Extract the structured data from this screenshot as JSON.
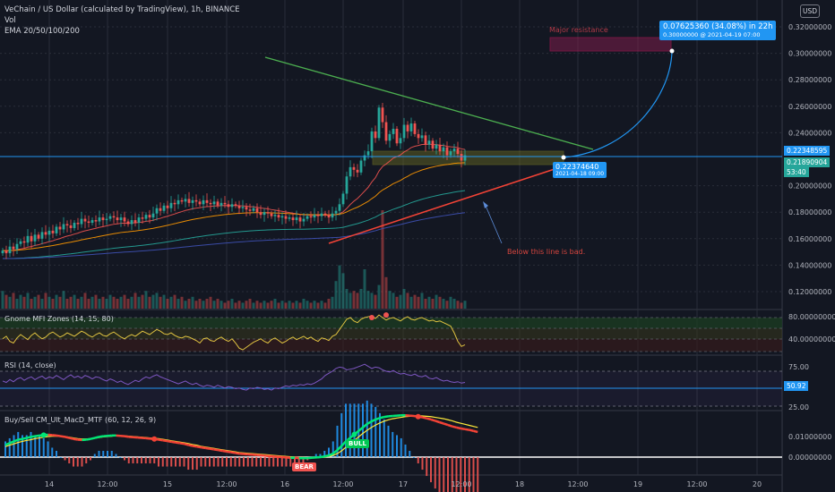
{
  "header": {
    "symbol_title": "VeChain / US Dollar (calculated by TradingView), 1h, BINANCE",
    "vol_label": "Vol",
    "ema_label": "EMA 20/50/100/200"
  },
  "currency_button": "USD",
  "price_axis": {
    "ticks": [
      "0.32000000",
      "0.30000000",
      "0.28000000",
      "0.26000000",
      "0.24000000",
      "0.20000000",
      "0.18000000",
      "0.16000000",
      "0.14000000",
      "0.12000000"
    ],
    "current_price": "0.22348595",
    "ema_price": "0.21890904",
    "countdown": "53:40",
    "accent": "#2196f3",
    "ema_color": "#26a69a"
  },
  "panes": {
    "mfi": {
      "label": "Gnome MFI Zones (14, 15, 80)",
      "ticks": [
        "80.00000000",
        "40.00000000"
      ]
    },
    "rsi": {
      "label": "RSI (14, close)",
      "ticks": [
        "75.00",
        "25.00"
      ],
      "current": "50.92"
    },
    "macd": {
      "label": "Buy/Sell CM_Ult_MacD_MTF (60, 12, 26, 9)",
      "ticks": [
        "0.01000000",
        "0.00000000"
      ]
    }
  },
  "time_axis": [
    "14",
    "12:00",
    "15",
    "12:00",
    "16",
    "12:00",
    "17",
    "12:00",
    "18",
    "12:00",
    "19",
    "12:00",
    "20"
  ],
  "annotations": {
    "major_resistance": "Major resistance",
    "below_line": "Below this line is bad.",
    "projection_main": "0.07625360 (34.08%) in 22h",
    "projection_sub": "0.30000000 @ 2021-04-19  07:00",
    "entry_price": "0.22374640",
    "entry_date": "2021-04-18 09:00",
    "bull": "BULL",
    "bear": "BEAR"
  },
  "chart_data": {
    "type": "candlestick",
    "x_labels": [
      "14",
      "12:00",
      "15",
      "12:00",
      "16",
      "12:00",
      "17",
      "12:00",
      "18",
      "12:00",
      "19",
      "12:00",
      "20"
    ],
    "ylim": [
      0.11,
      0.33
    ],
    "close": [
      0.151,
      0.149,
      0.154,
      0.152,
      0.156,
      0.158,
      0.157,
      0.162,
      0.158,
      0.163,
      0.16,
      0.165,
      0.163,
      0.166,
      0.164,
      0.169,
      0.167,
      0.171,
      0.17,
      0.168,
      0.172,
      0.171,
      0.175,
      0.173,
      0.172,
      0.174,
      0.173,
      0.176,
      0.174,
      0.175,
      0.177,
      0.176,
      0.174,
      0.176,
      0.173,
      0.171,
      0.174,
      0.172,
      0.176,
      0.175,
      0.178,
      0.176,
      0.179,
      0.183,
      0.181,
      0.185,
      0.183,
      0.187,
      0.186,
      0.189,
      0.188,
      0.19,
      0.187,
      0.189,
      0.188,
      0.186,
      0.189,
      0.187,
      0.186,
      0.188,
      0.185,
      0.187,
      0.186,
      0.184,
      0.186,
      0.185,
      0.183,
      0.184,
      0.182,
      0.181,
      0.183,
      0.18,
      0.178,
      0.18,
      0.179,
      0.177,
      0.178,
      0.176,
      0.177,
      0.175,
      0.176,
      0.174,
      0.176,
      0.173,
      0.175,
      0.177,
      0.176,
      0.178,
      0.177,
      0.179,
      0.178,
      0.176,
      0.179,
      0.181,
      0.186,
      0.194,
      0.207,
      0.214,
      0.212,
      0.21,
      0.219,
      0.223,
      0.226,
      0.241,
      0.236,
      0.259,
      0.248,
      0.234,
      0.239,
      0.243,
      0.232,
      0.236,
      0.246,
      0.241,
      0.247,
      0.239,
      0.236,
      0.238,
      0.231,
      0.234,
      0.228,
      0.231,
      0.226,
      0.229,
      0.223,
      0.226,
      0.228,
      0.224,
      0.219,
      0.223
    ],
    "volume": [
      9,
      7,
      6,
      8,
      5,
      7,
      6,
      8,
      5,
      6,
      7,
      5,
      8,
      6,
      5,
      7,
      6,
      9,
      5,
      6,
      7,
      5,
      6,
      8,
      5,
      6,
      7,
      5,
      6,
      5,
      7,
      6,
      5,
      6,
      7,
      5,
      6,
      8,
      6,
      7,
      9,
      6,
      7,
      8,
      6,
      7,
      5,
      6,
      7,
      5,
      6,
      4,
      5,
      6,
      4,
      5,
      4,
      5,
      6,
      4,
      5,
      4,
      3,
      4,
      5,
      3,
      4,
      3,
      4,
      5,
      3,
      4,
      3,
      4,
      3,
      4,
      5,
      3,
      4,
      3,
      4,
      3,
      4,
      3,
      5,
      4,
      3,
      4,
      3,
      4,
      3,
      5,
      6,
      14,
      22,
      18,
      10,
      8,
      9,
      8,
      10,
      20,
      9,
      8,
      7,
      12,
      50,
      16,
      9,
      8,
      6,
      7,
      10,
      8,
      6,
      7,
      6,
      8,
      5,
      6,
      5,
      7,
      6,
      5,
      4,
      6,
      5,
      4,
      3,
      4
    ],
    "mfi": [
      55,
      58,
      52,
      50,
      56,
      60,
      57,
      54,
      59,
      62,
      58,
      55,
      57,
      61,
      63,
      60,
      57,
      59,
      62,
      60,
      58,
      61,
      64,
      62,
      59,
      57,
      60,
      62,
      59,
      58,
      61,
      63,
      60,
      57,
      55,
      58,
      60,
      58,
      61,
      64,
      62,
      60,
      63,
      66,
      64,
      61,
      60,
      62,
      59,
      57,
      56,
      58,
      57,
      55,
      53,
      50,
      55,
      56,
      53,
      52,
      55,
      57,
      54,
      52,
      55,
      50,
      44,
      42,
      45,
      48,
      51,
      53,
      55,
      52,
      50,
      54,
      56,
      53,
      50,
      52,
      55,
      57,
      54,
      56,
      58,
      55,
      57,
      54,
      52,
      56,
      55,
      53,
      58,
      60,
      66,
      72,
      78,
      80,
      76,
      74,
      78,
      80,
      81,
      82,
      79,
      83,
      80,
      77,
      79,
      80,
      78,
      76,
      79,
      81,
      78,
      77,
      79,
      80,
      78,
      76,
      77,
      75,
      76,
      74,
      72,
      70,
      62,
      52,
      46,
      48
    ],
    "rsi": [
      52,
      50,
      54,
      51,
      55,
      57,
      53,
      56,
      58,
      54,
      57,
      59,
      55,
      58,
      56,
      60,
      57,
      54,
      58,
      61,
      57,
      59,
      56,
      60,
      58,
      55,
      58,
      57,
      54,
      52,
      55,
      53,
      50,
      52,
      49,
      47,
      50,
      53,
      51,
      55,
      58,
      56,
      59,
      61,
      58,
      56,
      54,
      52,
      50,
      48,
      50,
      52,
      49,
      47,
      49,
      46,
      44,
      46,
      45,
      43,
      46,
      44,
      42,
      44,
      43,
      41,
      42,
      40,
      39,
      42,
      41,
      43,
      42,
      40,
      41,
      39,
      42,
      41,
      43,
      45,
      44,
      46,
      45,
      47,
      46,
      48,
      47,
      49,
      52,
      55,
      60,
      63,
      66,
      70,
      72,
      71,
      68,
      69,
      70,
      72,
      74,
      76,
      73,
      70,
      72,
      71,
      68,
      66,
      65,
      67,
      64,
      62,
      63,
      61,
      60,
      62,
      59,
      58,
      60,
      56,
      55,
      57,
      54,
      52,
      53,
      51,
      50,
      51,
      49,
      50
    ],
    "macd_fast": [
      0.0035,
      0.004,
      0.0045,
      0.005,
      0.0052,
      0.0055,
      0.0058,
      0.006,
      0.0062,
      0.0063,
      0.0064,
      0.0063,
      0.0062,
      0.006,
      0.0058,
      0.0055,
      0.0052,
      0.005,
      0.0049,
      0.005,
      0.0052,
      0.0055,
      0.0058,
      0.006,
      0.0061,
      0.0062,
      0.0062,
      0.0061,
      0.006,
      0.0058,
      0.0057,
      0.0056,
      0.0055,
      0.0054,
      0.0053,
      0.0052,
      0.005,
      0.0048,
      0.0046,
      0.0044,
      0.0042,
      0.004,
      0.0038,
      0.0035,
      0.0032,
      0.003,
      0.0028,
      0.0026,
      0.0024,
      0.0022,
      0.002,
      0.0018,
      0.0016,
      0.0014,
      0.0012,
      0.001,
      0.0009,
      0.0008,
      0.0007,
      0.0006,
      0.0005,
      0.0004,
      0.0003,
      0.0002,
      0.0001,
      0.0,
      -0.0001,
      -0.0002,
      -0.0002,
      -0.0003,
      -0.0003,
      -0.0003,
      -0.0002,
      -0.0001,
      0.0,
      0.0002,
      0.0005,
      0.001,
      0.002,
      0.0032,
      0.0045,
      0.0055,
      0.0065,
      0.0075,
      0.0085,
      0.0095,
      0.0102,
      0.0108,
      0.0112,
      0.0115,
      0.0117,
      0.0118,
      0.0119,
      0.012,
      0.012,
      0.0119,
      0.0118,
      0.0116,
      0.0114,
      0.0111,
      0.0108,
      0.0104,
      0.01,
      0.0096,
      0.0092,
      0.0088,
      0.0085,
      0.0082,
      0.008,
      0.0078,
      0.0075,
      0.0072
    ],
    "macd_signal": [
      0.003,
      0.0034,
      0.0038,
      0.0042,
      0.0045,
      0.0048,
      0.005,
      0.0053,
      0.0055,
      0.0057,
      0.0059,
      0.006,
      0.006,
      0.006,
      0.0059,
      0.0057,
      0.0055,
      0.0053,
      0.0052,
      0.0052,
      0.0053,
      0.0054,
      0.0056,
      0.0058,
      0.0059,
      0.006,
      0.0061,
      0.0061,
      0.0061,
      0.006,
      0.0059,
      0.0058,
      0.0057,
      0.0056,
      0.0055,
      0.0054,
      0.0053,
      0.0051,
      0.0049,
      0.0047,
      0.0045,
      0.0043,
      0.0041,
      0.0039,
      0.0036,
      0.0034,
      0.0031,
      0.0029,
      0.0027,
      0.0025,
      0.0023,
      0.0021,
      0.0019,
      0.0017,
      0.0015,
      0.0013,
      0.0012,
      0.0011,
      0.001,
      0.0009,
      0.0008,
      0.0007,
      0.0006,
      0.0005,
      0.0004,
      0.0003,
      0.0002,
      0.0001,
      0.0,
      -0.0001,
      -0.0001,
      -0.0002,
      -0.0002,
      -0.0002,
      -0.0001,
      0.0,
      0.0002,
      0.0005,
      0.001,
      0.0018,
      0.0028,
      0.0038,
      0.0048,
      0.0058,
      0.0068,
      0.0077,
      0.0085,
      0.0092,
      0.0098,
      0.0103,
      0.0107,
      0.011,
      0.0112,
      0.0114,
      0.0116,
      0.0117,
      0.0118,
      0.0118,
      0.0118,
      0.0117,
      0.0116,
      0.0114,
      0.0112,
      0.011,
      0.0107,
      0.0104,
      0.01,
      0.0097,
      0.0094,
      0.0091,
      0.0088,
      0.0085
    ]
  }
}
